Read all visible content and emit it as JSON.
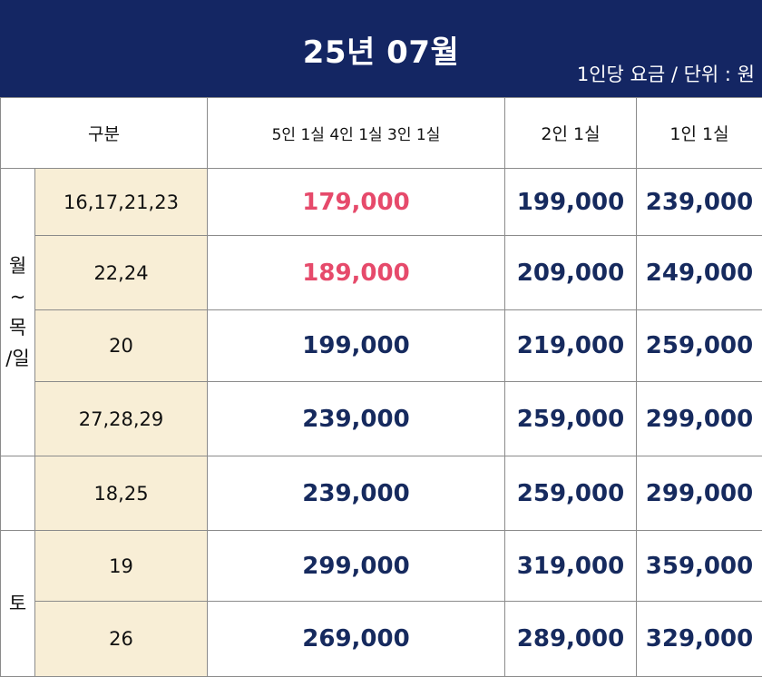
{
  "title": "25년 07월",
  "unit_note": "1인당 요금 / 단위 : 원",
  "columns": [
    "구분",
    "5인 1실 4인 1실 3인 1실",
    "2인 1실",
    "1인 1실"
  ],
  "groups": {
    "weekday": [
      "월",
      "~",
      "목",
      "/일"
    ],
    "middle": "",
    "saturday": "토"
  },
  "rows": [
    {
      "days": "16,17,21,23",
      "p543": "179,000",
      "p2": "199,000",
      "p1": "239,000",
      "highlight": true
    },
    {
      "days": "22,24",
      "p543": "189,000",
      "p2": "209,000",
      "p1": "249,000",
      "highlight": true
    },
    {
      "days": "20",
      "p543": "199,000",
      "p2": "219,000",
      "p1": "259,000",
      "highlight": false
    },
    {
      "days": "27,28,29",
      "p543": "239,000",
      "p2": "259,000",
      "p1": "299,000",
      "highlight": false
    },
    {
      "days": "18,25",
      "p543": "239,000",
      "p2": "259,000",
      "p1": "299,000",
      "highlight": false
    },
    {
      "days": "19",
      "p543": "299,000",
      "p2": "319,000",
      "p1": "359,000",
      "highlight": false
    },
    {
      "days": "26",
      "p543": "269,000",
      "p2": "289,000",
      "p1": "329,000",
      "highlight": false
    }
  ],
  "colors": {
    "header_bg": "#142663",
    "price_text": "#162a5e",
    "highlight_price": "#e64a6b",
    "day_cell_bg": "#f8eed6"
  }
}
